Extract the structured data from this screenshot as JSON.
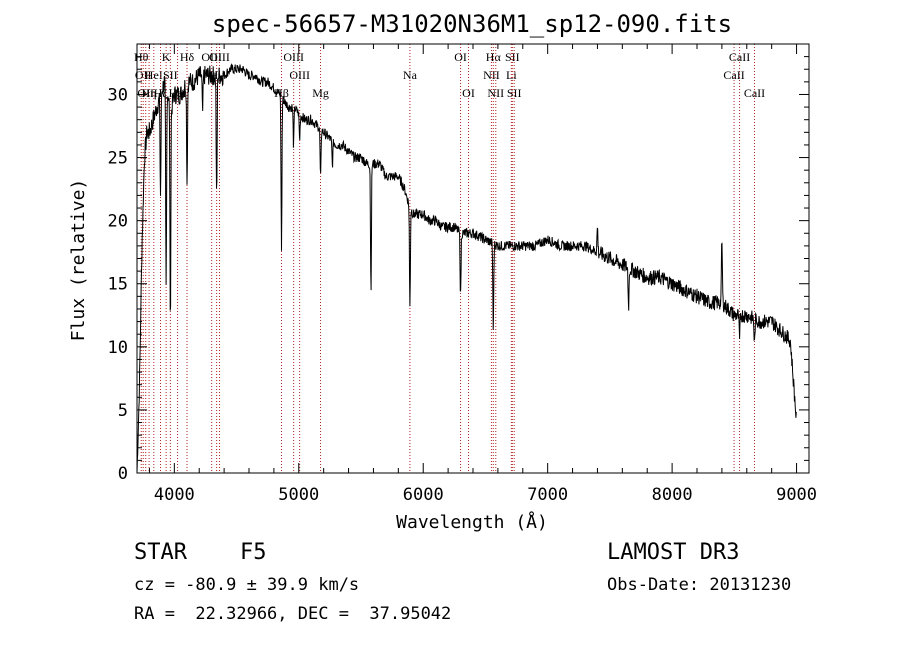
{
  "chart_data": {
    "type": "line",
    "title": "spec-56657-M31020N36M1_sp12-090.fits",
    "xlabel": "Wavelength (Å)",
    "ylabel": "Flux (relative)",
    "xlim": [
      3700,
      9100
    ],
    "ylim": [
      0,
      34
    ],
    "xticks": [
      4000,
      5000,
      6000,
      7000,
      8000,
      9000
    ],
    "yticks": [
      0,
      5,
      10,
      15,
      20,
      25,
      30
    ],
    "spectrum_anchors": {
      "x": [
        3700,
        3720,
        3740,
        3760,
        3780,
        3800,
        3830,
        3860,
        3890,
        3920,
        3950,
        3980,
        4000,
        4050,
        4100,
        4150,
        4200,
        4250,
        4300,
        4350,
        4400,
        4450,
        4500,
        4550,
        4600,
        4650,
        4700,
        4750,
        4800,
        4850,
        4880,
        4920,
        4960,
        5000,
        5050,
        5100,
        5150,
        5200,
        5250,
        5300,
        5350,
        5400,
        5450,
        5500,
        5550,
        5600,
        5650,
        5700,
        5750,
        5800,
        5850,
        5880,
        5920,
        5950,
        6000,
        6050,
        6100,
        6150,
        6200,
        6250,
        6300,
        6350,
        6400,
        6500,
        6600,
        6700,
        6800,
        6900,
        7000,
        7100,
        7200,
        7300,
        7400,
        7500,
        7600,
        7700,
        7800,
        7900,
        8000,
        8100,
        8200,
        8300,
        8400,
        8500,
        8600,
        8700,
        8800,
        8900,
        8950,
        9000
      ],
      "y": [
        0,
        7,
        18,
        25,
        27,
        27,
        28,
        29,
        30,
        31,
        30,
        29,
        30,
        30,
        31,
        31,
        31.5,
        31.5,
        31.5,
        31.5,
        31.5,
        32,
        32,
        32,
        31.5,
        31.5,
        31,
        31,
        30.5,
        30,
        29.5,
        29,
        29,
        28.5,
        28,
        28,
        27.5,
        27,
        26.5,
        26,
        26,
        25.5,
        25,
        25,
        24.5,
        24.5,
        24.5,
        23.5,
        23.5,
        23.5,
        22.5,
        21.5,
        20.5,
        20.5,
        20.5,
        20,
        20,
        19.5,
        19.5,
        19.5,
        19,
        19,
        19,
        18.5,
        18,
        18,
        18,
        18,
        18.5,
        18,
        18,
        18,
        17.5,
        17,
        16.5,
        16,
        15.5,
        15.5,
        15,
        14.5,
        14,
        13.5,
        13.5,
        12.5,
        12.5,
        12,
        12,
        11,
        10.5,
        4
      ]
    },
    "absorption_features": [
      {
        "x": 3889,
        "depth": 8
      },
      {
        "x": 3934,
        "depth": 16
      },
      {
        "x": 3968,
        "depth": 18
      },
      {
        "x": 4102,
        "depth": 8
      },
      {
        "x": 4227,
        "depth": 3
      },
      {
        "x": 4340,
        "depth": 10
      },
      {
        "x": 4861,
        "depth": 12
      },
      {
        "x": 4958,
        "depth": 3
      },
      {
        "x": 5007,
        "depth": 2
      },
      {
        "x": 5175,
        "depth": 4
      },
      {
        "x": 5270,
        "depth": 2
      },
      {
        "x": 5580,
        "depth": 10
      },
      {
        "x": 5893,
        "depth": 8
      },
      {
        "x": 6300,
        "depth": 5
      },
      {
        "x": 6563,
        "depth": 7
      },
      {
        "x": 7400,
        "depth": -2
      },
      {
        "x": 7650,
        "depth": 3
      },
      {
        "x": 8400,
        "depth": -5
      },
      {
        "x": 8542,
        "depth": 2
      },
      {
        "x": 8662,
        "depth": 2
      }
    ],
    "line_markers": [
      {
        "x": 3734,
        "label": "Hθ",
        "row": 0
      },
      {
        "x": 3750,
        "label": "OII",
        "row": 1
      },
      {
        "x": 3770,
        "label": "OII",
        "row": 2
      },
      {
        "x": 3797,
        "label": "Hη",
        "row": 2
      },
      {
        "x": 3835,
        "label": "HeI",
        "row": 1
      },
      {
        "x": 3889,
        "label": "Hζ",
        "row": 2
      },
      {
        "x": 3934,
        "label": "K",
        "row": 0
      },
      {
        "x": 3968,
        "label": "SII",
        "row": 1
      },
      {
        "x": 4026,
        "label": "HeI",
        "row": 2
      },
      {
        "x": 4102,
        "label": "Hδ",
        "row": 0
      },
      {
        "x": 4300,
        "label": "OIII",
        "row": 0
      },
      {
        "x": 4340,
        "label": "Hγ",
        "row": 1
      },
      {
        "x": 4363,
        "label": "OIII",
        "row": 0
      },
      {
        "x": 4861,
        "label": "Hβ",
        "row": 2
      },
      {
        "x": 4959,
        "label": "OIII",
        "row": 0
      },
      {
        "x": 5007,
        "label": "OIII",
        "row": 1
      },
      {
        "x": 5175,
        "label": "Mg",
        "row": 2
      },
      {
        "x": 5893,
        "label": "Na",
        "row": 1
      },
      {
        "x": 6300,
        "label": "OI",
        "row": 0
      },
      {
        "x": 6364,
        "label": "OI",
        "row": 2
      },
      {
        "x": 6548,
        "label": "NII",
        "row": 1
      },
      {
        "x": 6563,
        "label": "Hα",
        "row": 0
      },
      {
        "x": 6583,
        "label": "NII",
        "row": 2
      },
      {
        "x": 6708,
        "label": "Li",
        "row": 1
      },
      {
        "x": 6716,
        "label": "SII",
        "row": 0
      },
      {
        "x": 6731,
        "label": "SII",
        "row": 2
      },
      {
        "x": 8498,
        "label": "CaII",
        "row": 1
      },
      {
        "x": 8542,
        "label": "CaII",
        "row": 0
      },
      {
        "x": 8662,
        "label": "CaII",
        "row": 2
      }
    ],
    "colors": {
      "spectrum": "#000000",
      "markers": "#b22222",
      "axes": "#000000"
    }
  },
  "info": {
    "class_label": "STAR",
    "subclass": "F5",
    "survey": "LAMOST DR3",
    "cz": "cz = -80.9 ± 39.9 km/s",
    "obs_date": "Obs-Date: 20131230",
    "coords": "RA =  22.32966, DEC =  37.95042"
  }
}
